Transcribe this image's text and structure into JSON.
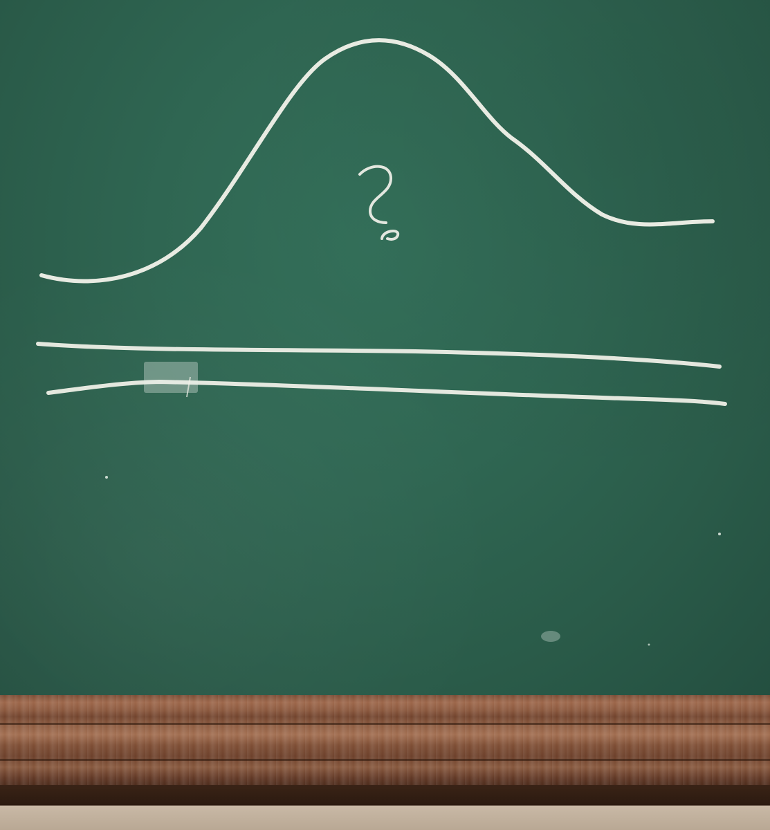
{
  "scene": {
    "subject": "chalkboard",
    "board_color": "#2f6652",
    "chalk_color": "#f2f2ea",
    "ledge_color": "#8a563b",
    "drawn_mark": "?"
  }
}
